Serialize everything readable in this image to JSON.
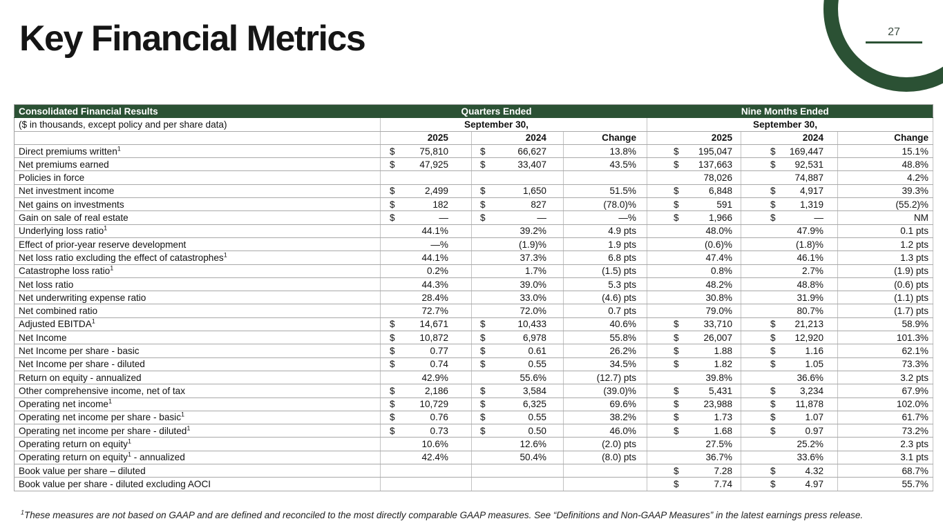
{
  "colors": {
    "green": "#2b5134"
  },
  "page": {
    "number": "27"
  },
  "title": "Key Financial Metrics",
  "table": {
    "header": {
      "title": "Consolidated Financial Results",
      "subtitle": "($ in thousands, except policy and per share data)",
      "group_quarters": "Quarters Ended",
      "group_nine_months": "Nine Months Ended",
      "date_quarters": "September 30,",
      "date_nine_months": "September 30,",
      "cols": [
        "2025",
        "2024",
        "Change",
        "2025",
        "2024",
        "Change"
      ]
    },
    "rows": [
      {
        "pre": "Direct premiums written",
        "sup": "1",
        "post": "",
        "cells": [
          [
            "$",
            "75,810"
          ],
          [
            "$",
            "66,627"
          ],
          [
            "",
            "13.8%"
          ],
          [
            "$",
            "195,047"
          ],
          [
            "$",
            "169,447"
          ],
          [
            "",
            "15.1%"
          ]
        ]
      },
      {
        "pre": "Net premiums earned",
        "sup": "",
        "post": "",
        "cells": [
          [
            "$",
            "47,925"
          ],
          [
            "$",
            "33,407"
          ],
          [
            "",
            "43.5%"
          ],
          [
            "$",
            "137,663"
          ],
          [
            "$",
            "92,531"
          ],
          [
            "",
            "48.8%"
          ]
        ]
      },
      {
        "pre": "Policies in force",
        "sup": "",
        "post": "",
        "cells": [
          [
            "",
            ""
          ],
          [
            "",
            ""
          ],
          [
            "",
            ""
          ],
          [
            "",
            "78,026"
          ],
          [
            "",
            "74,887"
          ],
          [
            "",
            "4.2%"
          ]
        ]
      },
      {
        "pre": "Net investment income",
        "sup": "",
        "post": "",
        "cells": [
          [
            "$",
            "2,499"
          ],
          [
            "$",
            "1,650"
          ],
          [
            "",
            "51.5%"
          ],
          [
            "$",
            "6,848"
          ],
          [
            "$",
            "4,917"
          ],
          [
            "",
            "39.3%"
          ]
        ]
      },
      {
        "pre": "Net gains on investments",
        "sup": "",
        "post": "",
        "cells": [
          [
            "$",
            "182"
          ],
          [
            "$",
            "827"
          ],
          [
            "",
            "(78.0)%"
          ],
          [
            "$",
            "591"
          ],
          [
            "$",
            "1,319"
          ],
          [
            "",
            "(55.2)%"
          ]
        ]
      },
      {
        "pre": "Gain on sale of real estate",
        "sup": "",
        "post": "",
        "cells": [
          [
            "$",
            "—"
          ],
          [
            "$",
            "—"
          ],
          [
            "",
            "—%"
          ],
          [
            "$",
            "1,966"
          ],
          [
            "$",
            "—"
          ],
          [
            "",
            "NM"
          ]
        ]
      },
      {
        "pre": "Underlying loss ratio",
        "sup": "1",
        "post": "",
        "cells": [
          [
            "",
            "44.1%"
          ],
          [
            "",
            "39.2%"
          ],
          [
            "",
            "4.9 pts"
          ],
          [
            "",
            "48.0%"
          ],
          [
            "",
            "47.9%"
          ],
          [
            "",
            "0.1 pts"
          ]
        ]
      },
      {
        "pre": "Effect of prior-year reserve development",
        "sup": "",
        "post": "",
        "cells": [
          [
            "",
            "—%"
          ],
          [
            "",
            "(1.9)%"
          ],
          [
            "",
            "1.9 pts"
          ],
          [
            "",
            "(0.6)%"
          ],
          [
            "",
            "(1.8)%"
          ],
          [
            "",
            "1.2 pts"
          ]
        ]
      },
      {
        "pre": "Net loss ratio excluding the effect of catastrophes",
        "sup": "1",
        "post": "",
        "cells": [
          [
            "",
            "44.1%"
          ],
          [
            "",
            "37.3%"
          ],
          [
            "",
            "6.8 pts"
          ],
          [
            "",
            "47.4%"
          ],
          [
            "",
            "46.1%"
          ],
          [
            "",
            "1.3 pts"
          ]
        ]
      },
      {
        "pre": "Catastrophe loss ratio",
        "sup": "1",
        "post": "",
        "cells": [
          [
            "",
            "0.2%"
          ],
          [
            "",
            "1.7%"
          ],
          [
            "",
            "(1.5) pts"
          ],
          [
            "",
            "0.8%"
          ],
          [
            "",
            "2.7%"
          ],
          [
            "",
            "(1.9)  pts"
          ]
        ]
      },
      {
        "pre": "Net loss ratio",
        "sup": "",
        "post": "",
        "cells": [
          [
            "",
            "44.3%"
          ],
          [
            "",
            "39.0%"
          ],
          [
            "",
            "5.3 pts"
          ],
          [
            "",
            "48.2%"
          ],
          [
            "",
            "48.8%"
          ],
          [
            "",
            "(0.6) pts"
          ]
        ]
      },
      {
        "pre": "Net underwriting expense ratio",
        "sup": "",
        "post": "",
        "cells": [
          [
            "",
            "28.4%"
          ],
          [
            "",
            "33.0%"
          ],
          [
            "",
            "(4.6) pts"
          ],
          [
            "",
            "30.8%"
          ],
          [
            "",
            "31.9%"
          ],
          [
            "",
            "(1.1) pts"
          ]
        ]
      },
      {
        "pre": "Net combined ratio",
        "sup": "",
        "post": "",
        "cells": [
          [
            "",
            "72.7%"
          ],
          [
            "",
            "72.0%"
          ],
          [
            "",
            "0.7 pts"
          ],
          [
            "",
            "79.0%"
          ],
          [
            "",
            "80.7%"
          ],
          [
            "",
            "(1.7) pts"
          ]
        ]
      },
      {
        "pre": "Adjusted EBITDA",
        "sup": "1",
        "post": "",
        "cells": [
          [
            "$",
            "14,671"
          ],
          [
            "$",
            "10,433"
          ],
          [
            "",
            "40.6%"
          ],
          [
            "$",
            "33,710"
          ],
          [
            "$",
            "21,213"
          ],
          [
            "",
            "58.9%"
          ]
        ]
      },
      {
        "pre": "Net Income",
        "sup": "",
        "post": "",
        "cells": [
          [
            "$",
            "10,872"
          ],
          [
            "$",
            "6,978"
          ],
          [
            "",
            "55.8%"
          ],
          [
            "$",
            "26,007"
          ],
          [
            "$",
            "12,920"
          ],
          [
            "",
            "101.3%"
          ]
        ]
      },
      {
        "pre": "Net Income per share - basic",
        "sup": "",
        "post": "",
        "cells": [
          [
            "$",
            "0.77"
          ],
          [
            "$",
            "0.61"
          ],
          [
            "",
            "26.2%"
          ],
          [
            "$",
            "1.88"
          ],
          [
            "$",
            "1.16"
          ],
          [
            "",
            "62.1%"
          ]
        ]
      },
      {
        "pre": "Net Income per share - diluted",
        "sup": "",
        "post": "",
        "cells": [
          [
            "$",
            "0.74"
          ],
          [
            "$",
            "0.55"
          ],
          [
            "",
            "34.5%"
          ],
          [
            "$",
            "1.82"
          ],
          [
            "$",
            "1.05"
          ],
          [
            "",
            "73.3%"
          ]
        ]
      },
      {
        "pre": "Return on equity - annualized",
        "sup": "",
        "post": "",
        "cells": [
          [
            "",
            "42.9%"
          ],
          [
            "",
            "55.6%"
          ],
          [
            "",
            "(12.7) pts"
          ],
          [
            "",
            "39.8%"
          ],
          [
            "",
            "36.6%"
          ],
          [
            "",
            "3.2 pts"
          ]
        ]
      },
      {
        "pre": "Other comprehensive income, net of tax",
        "sup": "",
        "post": "",
        "cells": [
          [
            "$",
            "2,186"
          ],
          [
            "$",
            "3,584"
          ],
          [
            "",
            "(39.0)%"
          ],
          [
            "$",
            "5,431"
          ],
          [
            "$",
            "3,234"
          ],
          [
            "",
            "67.9%"
          ]
        ]
      },
      {
        "pre": "Operating net income",
        "sup": "1",
        "post": "",
        "cells": [
          [
            "$",
            "10,729"
          ],
          [
            "$",
            "6,325"
          ],
          [
            "",
            "69.6%"
          ],
          [
            "$",
            "23,988"
          ],
          [
            "$",
            "11,878"
          ],
          [
            "",
            "102.0%"
          ]
        ]
      },
      {
        "pre": "Operating net income per share - basic",
        "sup": "1",
        "post": "",
        "cells": [
          [
            "$",
            "0.76"
          ],
          [
            "$",
            "0.55"
          ],
          [
            "",
            "38.2%"
          ],
          [
            "$",
            "1.73"
          ],
          [
            "$",
            "1.07"
          ],
          [
            "",
            "61.7%"
          ]
        ]
      },
      {
        "pre": "Operating net income per share - diluted",
        "sup": "1",
        "post": "",
        "cells": [
          [
            "$",
            "0.73"
          ],
          [
            "$",
            "0.50"
          ],
          [
            "",
            "46.0%"
          ],
          [
            "$",
            "1.68"
          ],
          [
            "$",
            "0.97"
          ],
          [
            "",
            "73.2%"
          ]
        ]
      },
      {
        "pre": "Operating return on equity",
        "sup": "1",
        "post": "",
        "cells": [
          [
            "",
            "10.6%"
          ],
          [
            "",
            "12.6%"
          ],
          [
            "",
            "(2.0) pts"
          ],
          [
            "",
            "27.5%"
          ],
          [
            "",
            "25.2%"
          ],
          [
            "",
            "2.3 pts"
          ]
        ]
      },
      {
        "pre": "Operating return on equity",
        "sup": "1",
        "post": " - annualized",
        "cells": [
          [
            "",
            "42.4%"
          ],
          [
            "",
            "50.4%"
          ],
          [
            "",
            "(8.0) pts"
          ],
          [
            "",
            "36.7%"
          ],
          [
            "",
            "33.6%"
          ],
          [
            "",
            "3.1 pts"
          ]
        ]
      },
      {
        "pre": "Book value per share – diluted",
        "sup": "",
        "post": "",
        "cells": [
          [
            "",
            ""
          ],
          [
            "",
            ""
          ],
          [
            "",
            ""
          ],
          [
            "$",
            "7.28"
          ],
          [
            "$",
            "4.32"
          ],
          [
            "",
            "68.7%"
          ]
        ]
      },
      {
        "pre": "Book value per share - diluted excluding AOCI",
        "sup": "",
        "post": "",
        "cells": [
          [
            "",
            ""
          ],
          [
            "",
            ""
          ],
          [
            "",
            ""
          ],
          [
            "$",
            "7.74"
          ],
          [
            "$",
            "4.97"
          ],
          [
            "",
            "55.7%"
          ]
        ]
      }
    ]
  },
  "footnote": {
    "sup": "1",
    "text": "These measures are not based on GAAP and are defined and reconciled to the most directly comparable GAAP measures. See “Definitions and Non-GAAP Measures” in the latest earnings press release."
  }
}
